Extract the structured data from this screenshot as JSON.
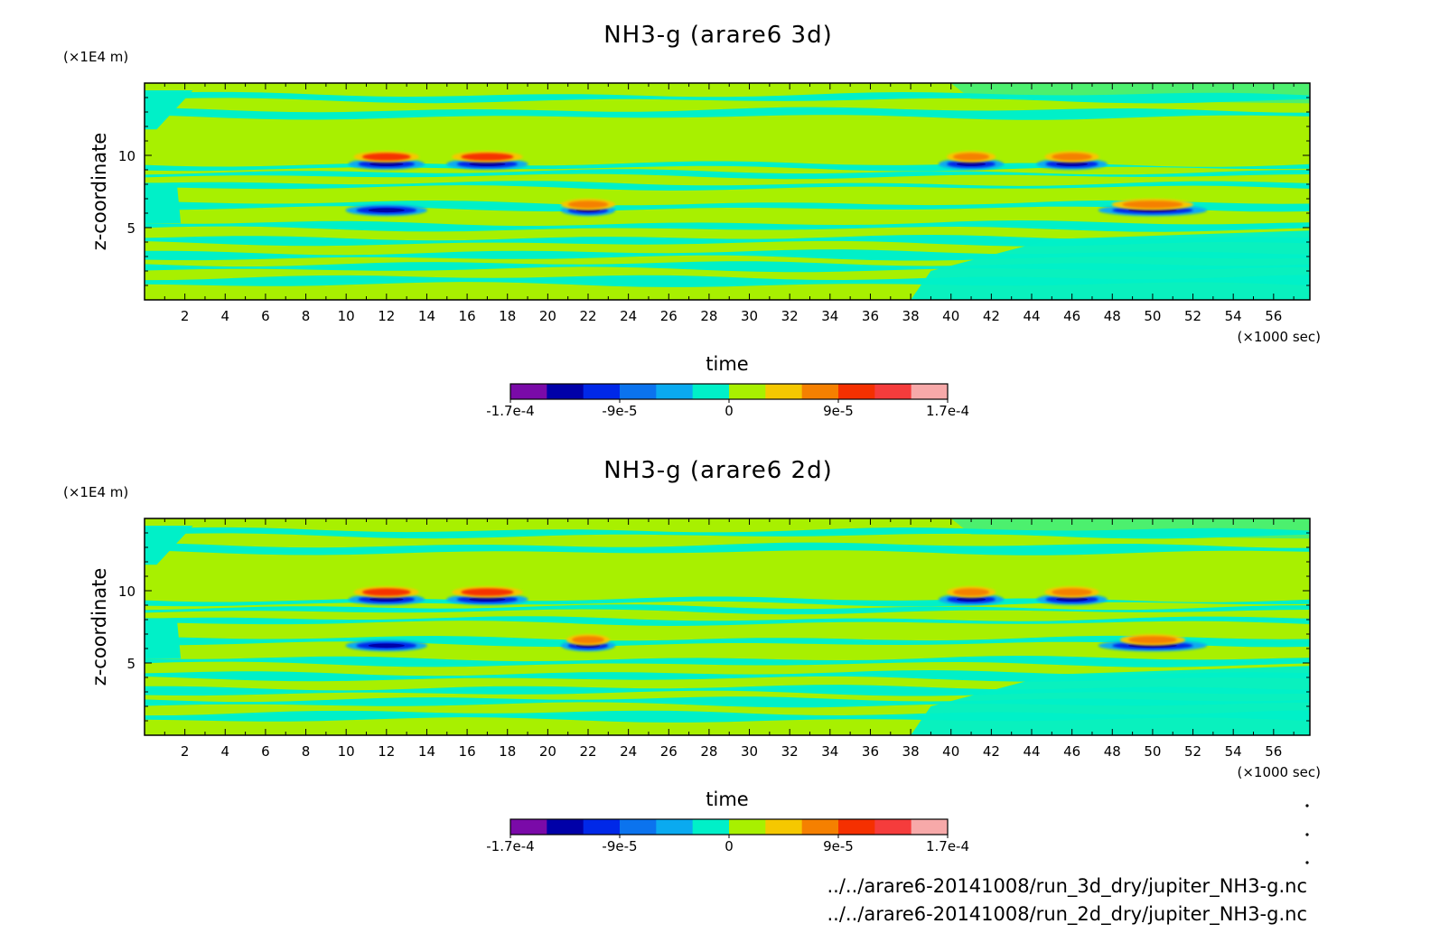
{
  "chart_data": [
    {
      "type": "heatmap",
      "title": "NH3-g (arare6 3d)",
      "xlabel": "time",
      "x_unit": "(×1000 sec)",
      "ylabel": "z-coordinate",
      "y_unit": "(×1E4 m)",
      "x_ticks": [
        "2",
        "4",
        "6",
        "8",
        "10",
        "12",
        "14",
        "16",
        "18",
        "20",
        "22",
        "24",
        "26",
        "28",
        "30",
        "32",
        "34",
        "36",
        "38",
        "40",
        "42",
        "44",
        "46",
        "48",
        "50",
        "52",
        "54",
        "56"
      ],
      "y_ticks": [
        "5",
        "10"
      ],
      "xlim": [
        0,
        57.8
      ],
      "ylim": [
        0,
        15
      ],
      "bands": [
        {
          "y": 14.0,
          "h": 0.4,
          "color": "cyan"
        },
        {
          "y": 12.9,
          "h": 0.5,
          "color": "cyan"
        },
        {
          "y": 9.25,
          "h": 0.3,
          "color": "cyan"
        },
        {
          "y": 8.7,
          "h": 0.3,
          "color": "cyan"
        },
        {
          "y": 7.9,
          "h": 0.3,
          "color": "cyan"
        },
        {
          "y": 6.5,
          "h": 0.4,
          "color": "cyan"
        },
        {
          "y": 5.1,
          "h": 0.4,
          "color": "cyan"
        },
        {
          "y": 4.1,
          "h": 0.4,
          "color": "cyan"
        },
        {
          "y": 3.1,
          "h": 0.4,
          "color": "cyan"
        },
        {
          "y": 2.3,
          "h": 0.4,
          "color": "cyan"
        },
        {
          "y": 1.3,
          "h": 0.5,
          "color": "cyan"
        }
      ],
      "features": [
        {
          "x": 12.0,
          "y": 9.4,
          "w": 2.8,
          "color": "blue"
        },
        {
          "x": 12.0,
          "y": 9.9,
          "w": 2.4,
          "color": "red"
        },
        {
          "x": 17.0,
          "y": 9.4,
          "w": 3.0,
          "color": "blue"
        },
        {
          "x": 17.0,
          "y": 9.9,
          "w": 2.6,
          "color": "red"
        },
        {
          "x": 41.0,
          "y": 9.4,
          "w": 2.4,
          "color": "blue"
        },
        {
          "x": 41.0,
          "y": 9.9,
          "w": 1.8,
          "color": "orange"
        },
        {
          "x": 46.0,
          "y": 9.4,
          "w": 2.6,
          "color": "blue"
        },
        {
          "x": 46.0,
          "y": 9.9,
          "w": 2.0,
          "color": "orange"
        },
        {
          "x": 12.0,
          "y": 6.2,
          "w": 3.0,
          "color": "blue"
        },
        {
          "x": 22.0,
          "y": 6.2,
          "w": 2.0,
          "color": "blue"
        },
        {
          "x": 22.0,
          "y": 6.6,
          "w": 2.0,
          "color": "orange"
        },
        {
          "x": 50.0,
          "y": 6.2,
          "w": 4.0,
          "color": "blue"
        },
        {
          "x": 50.0,
          "y": 6.6,
          "w": 3.0,
          "color": "orange"
        }
      ],
      "colorbar": {
        "colors": [
          "#7a0aa8",
          "#0000a8",
          "#0028e8",
          "#0b73ee",
          "#0aaaf0",
          "#00f0c8",
          "#a8f000",
          "#f5c800",
          "#f58000",
          "#f53000",
          "#f53c3c",
          "#f7a9a9"
        ],
        "labels": [
          "-1.7e-4",
          "-9e-5",
          "0",
          "9e-5",
          "1.7e-4"
        ]
      },
      "colors": {
        "background": "#00f0c8",
        "band": "#a8f000"
      }
    },
    {
      "type": "heatmap",
      "title": "NH3-g (arare6 2d)",
      "xlabel": "time",
      "x_unit": "(×1000 sec)",
      "ylabel": "z-coordinate",
      "y_unit": "(×1E4 m)",
      "x_ticks": [
        "2",
        "4",
        "6",
        "8",
        "10",
        "12",
        "14",
        "16",
        "18",
        "20",
        "22",
        "24",
        "26",
        "28",
        "30",
        "32",
        "34",
        "36",
        "38",
        "40",
        "42",
        "44",
        "46",
        "48",
        "50",
        "52",
        "54",
        "56"
      ],
      "y_ticks": [
        "5",
        "10"
      ],
      "xlim": [
        0,
        57.8
      ],
      "ylim": [
        0,
        15
      ],
      "bands": [
        {
          "y": 14.0,
          "h": 0.4,
          "color": "cyan"
        },
        {
          "y": 12.9,
          "h": 0.5,
          "color": "cyan"
        },
        {
          "y": 9.25,
          "h": 0.3,
          "color": "cyan"
        },
        {
          "y": 8.7,
          "h": 0.3,
          "color": "cyan"
        },
        {
          "y": 7.9,
          "h": 0.3,
          "color": "cyan"
        },
        {
          "y": 6.5,
          "h": 0.4,
          "color": "cyan"
        },
        {
          "y": 5.1,
          "h": 0.4,
          "color": "cyan"
        },
        {
          "y": 4.1,
          "h": 0.4,
          "color": "cyan"
        },
        {
          "y": 3.1,
          "h": 0.4,
          "color": "cyan"
        },
        {
          "y": 2.3,
          "h": 0.4,
          "color": "cyan"
        },
        {
          "y": 1.3,
          "h": 0.5,
          "color": "cyan"
        }
      ],
      "features": [
        {
          "x": 12.0,
          "y": 9.4,
          "w": 2.8,
          "color": "blue"
        },
        {
          "x": 12.0,
          "y": 9.9,
          "w": 2.4,
          "color": "red"
        },
        {
          "x": 17.0,
          "y": 9.4,
          "w": 3.0,
          "color": "blue"
        },
        {
          "x": 17.0,
          "y": 9.9,
          "w": 2.6,
          "color": "red"
        },
        {
          "x": 41.0,
          "y": 9.4,
          "w": 2.4,
          "color": "blue"
        },
        {
          "x": 41.0,
          "y": 9.9,
          "w": 1.8,
          "color": "orange"
        },
        {
          "x": 46.0,
          "y": 9.4,
          "w": 2.6,
          "color": "blue"
        },
        {
          "x": 46.0,
          "y": 9.9,
          "w": 2.0,
          "color": "orange"
        },
        {
          "x": 12.0,
          "y": 6.2,
          "w": 3.0,
          "color": "blue"
        },
        {
          "x": 22.0,
          "y": 6.2,
          "w": 2.0,
          "color": "blue"
        },
        {
          "x": 22.0,
          "y": 6.6,
          "w": 1.6,
          "color": "orange"
        },
        {
          "x": 50.0,
          "y": 6.2,
          "w": 4.0,
          "color": "blue"
        },
        {
          "x": 50.0,
          "y": 6.6,
          "w": 2.4,
          "color": "orange"
        }
      ],
      "colorbar": {
        "colors": [
          "#7a0aa8",
          "#0000a8",
          "#0028e8",
          "#0b73ee",
          "#0aaaf0",
          "#00f0c8",
          "#a8f000",
          "#f5c800",
          "#f58000",
          "#f53000",
          "#f53c3c",
          "#f7a9a9"
        ],
        "labels": [
          "-1.7e-4",
          "-9e-5",
          "0",
          "9e-5",
          "1.7e-4"
        ]
      },
      "colors": {
        "background": "#00f0c8",
        "band": "#a8f000"
      }
    }
  ],
  "file_paths": [
    "../../arare6-20141008/run_3d_dry/jupiter_NH3-g.nc",
    "../../arare6-20141008/run_2d_dry/jupiter_NH3-g.nc"
  ]
}
